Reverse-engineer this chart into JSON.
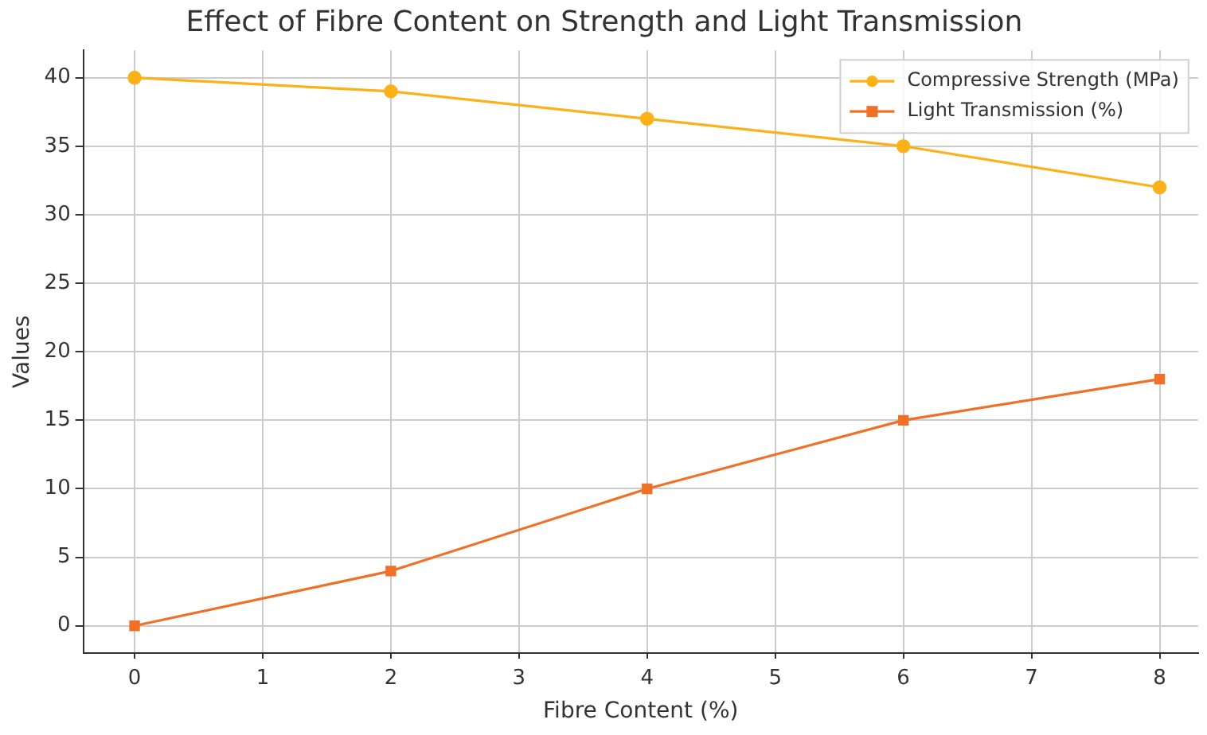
{
  "chart_data": {
    "type": "line",
    "title": "Effect of Fibre Content on Strength and Light Transmission",
    "xlabel": "Fibre Content (%)",
    "ylabel": "Values",
    "x": [
      0,
      2,
      4,
      6,
      8
    ],
    "series": [
      {
        "name": "Compressive Strength (MPa)",
        "color": "#fbb117",
        "marker": "circle",
        "values": [
          40,
          39,
          37,
          35,
          32
        ]
      },
      {
        "name": "Light Transmission (%)",
        "color": "#f07028",
        "marker": "square",
        "values": [
          0,
          4,
          10,
          15,
          18
        ]
      }
    ],
    "xlim": [
      -0.4,
      8.3
    ],
    "xticks": [
      0,
      1,
      2,
      3,
      4,
      5,
      6,
      7,
      8
    ],
    "ylim": [
      -2,
      42
    ],
    "yticks": [
      0,
      5,
      10,
      15,
      20,
      25,
      30,
      35,
      40
    ],
    "grid": true,
    "legend": "top right",
    "line_style": "solid"
  }
}
